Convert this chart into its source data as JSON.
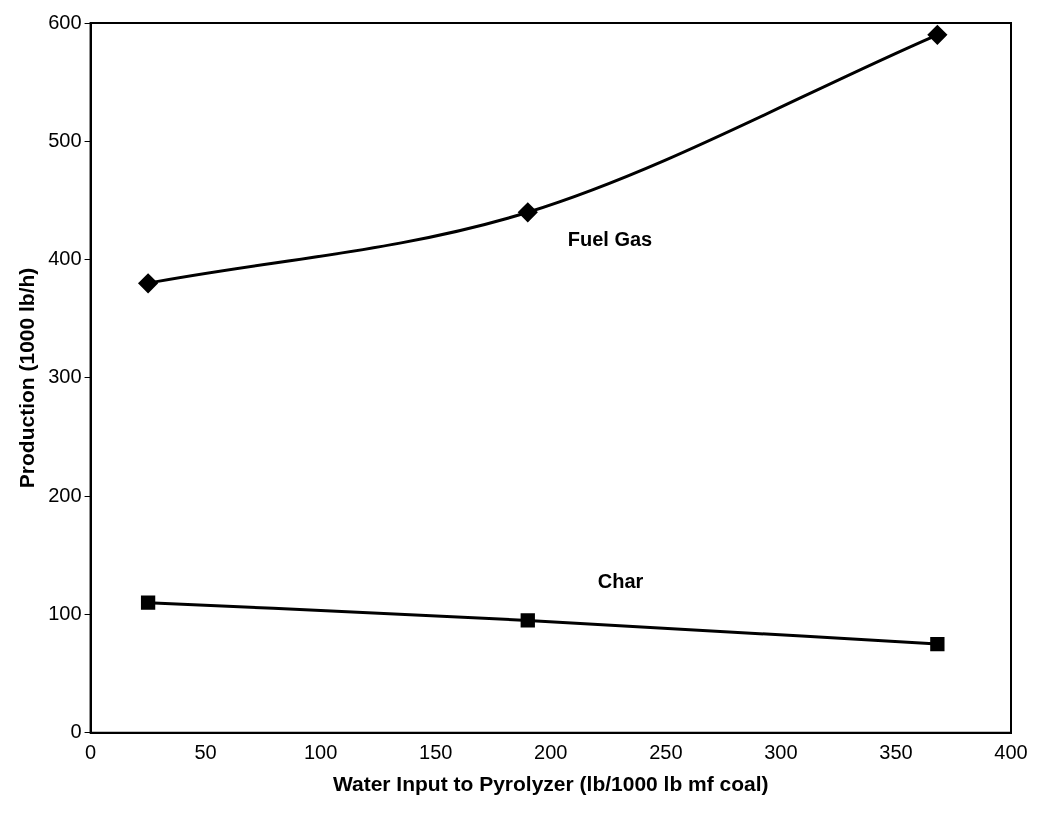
{
  "chart_data": {
    "type": "line",
    "xlabel": "Water Input to Pyrolyzer (lb/1000 lb mf coal)",
    "ylabel": "Production (1000 lb/h)",
    "xlim": [
      0,
      400
    ],
    "xticks": [
      0,
      50,
      100,
      150,
      200,
      250,
      300,
      350,
      400
    ],
    "ylim": [
      0,
      600
    ],
    "yticks": [
      0,
      100,
      200,
      300,
      400,
      500,
      600
    ],
    "grid": false,
    "legend": false,
    "series": [
      {
        "name": "Fuel Gas",
        "color": "#000000",
        "marker": "diamond",
        "x": [
          25,
          190,
          368
        ],
        "values": [
          380,
          440,
          590
        ]
      },
      {
        "name": "Char",
        "color": "#000000",
        "marker": "square",
        "x": [
          25,
          190,
          368
        ],
        "values": [
          110,
          95,
          75
        ]
      }
    ]
  }
}
